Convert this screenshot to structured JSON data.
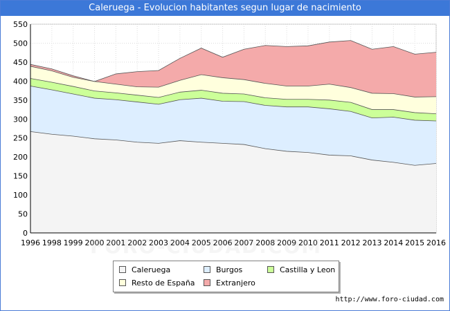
{
  "source_url": "http://www.foro-ciudad.com",
  "watermark": "FORO-CIUDAD.COM",
  "colors": {
    "title_bg": "#3c78d8",
    "caleruega": "#f4f4f4",
    "burgos": "#ddeeff",
    "castilla": "#ccff99",
    "resto": "#ffffdd",
    "extranjero": "#f4aaaa"
  },
  "chart_data": {
    "type": "area",
    "title": "Caleruega - Evolucion habitantes segun lugar de nacimiento",
    "xlabel": "",
    "ylabel": "",
    "stacked": true,
    "x": [
      1996,
      1998,
      1999,
      2000,
      2001,
      2002,
      2003,
      2004,
      2005,
      2006,
      2007,
      2008,
      2009,
      2010,
      2011,
      2012,
      2013,
      2014,
      2015,
      2016
    ],
    "x_ticks": [
      "1996",
      "1998",
      "1999",
      "2000",
      "2001",
      "2002",
      "2003",
      "2004",
      "2005",
      "2006",
      "2007",
      "2008",
      "2009",
      "2010",
      "2011",
      "2012",
      "2013",
      "2014",
      "2015",
      "2016"
    ],
    "ylim": [
      0,
      550
    ],
    "y_ticks": [
      "0",
      "50",
      "100",
      "150",
      "200",
      "250",
      "300",
      "350",
      "400",
      "450",
      "500",
      "550"
    ],
    "grid": true,
    "legend_position": "bottom",
    "series": [
      {
        "name": "Caleruega",
        "values": [
          267,
          260,
          255,
          248,
          245,
          239,
          236,
          243,
          239,
          236,
          233,
          222,
          215,
          212,
          205,
          203,
          192,
          186,
          178,
          183
        ]
      },
      {
        "name": "Burgos",
        "values": [
          120,
          117,
          111,
          107,
          106,
          106,
          103,
          108,
          116,
          111,
          113,
          114,
          117,
          120,
          122,
          117,
          111,
          119,
          119,
          112
        ]
      },
      {
        "name": "Castilla y Leon",
        "values": [
          20,
          20,
          20,
          19,
          18,
          18,
          18,
          20,
          21,
          21,
          20,
          20,
          20,
          20,
          23,
          24,
          22,
          20,
          20,
          19
        ]
      },
      {
        "name": "Resto de España",
        "values": [
          32,
          30,
          24,
          25,
          23,
          22,
          27,
          31,
          41,
          41,
          38,
          38,
          35,
          35,
          42,
          39,
          43,
          42,
          41,
          45
        ]
      },
      {
        "name": "Extranjero",
        "values": [
          5,
          5,
          4,
          0,
          27,
          40,
          44,
          58,
          70,
          54,
          80,
          100,
          104,
          106,
          111,
          124,
          116,
          124,
          113,
          117
        ]
      }
    ]
  },
  "legend": {
    "items": [
      {
        "label": "Caleruega",
        "color": "#f4f4f4"
      },
      {
        "label": "Burgos",
        "color": "#ddeeff"
      },
      {
        "label": "Castilla y Leon",
        "color": "#ccff99"
      },
      {
        "label": "Resto de España",
        "color": "#ffffdd"
      },
      {
        "label": "Extranjero",
        "color": "#f4aaaa"
      }
    ]
  }
}
